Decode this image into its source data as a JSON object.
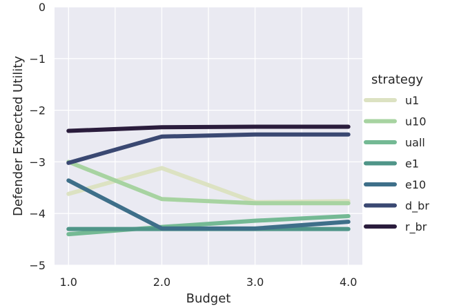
{
  "chart_data": {
    "type": "line",
    "xlabel": "Budget",
    "ylabel": "Defender Expected Utility",
    "x": [
      1.0,
      2.0,
      3.0,
      4.0
    ],
    "x_tick_labels": [
      "1.0",
      "2.0",
      "3.0",
      "4.0"
    ],
    "xlim": [
      0.85,
      4.15
    ],
    "ylim": [
      -5,
      0
    ],
    "y_ticks": [
      0,
      -1,
      -2,
      -3,
      -4,
      -5
    ],
    "y_tick_labels": [
      "0",
      "−1",
      "−2",
      "−3",
      "−4",
      "−5"
    ],
    "grid": true,
    "legend_title": "strategy",
    "legend_position": "right",
    "series": [
      {
        "name": "u1",
        "color": "#dce2c2",
        "values": [
          -3.62,
          -3.12,
          -3.78,
          -3.76
        ]
      },
      {
        "name": "u10",
        "color": "#a7d3a1",
        "values": [
          -3.0,
          -3.72,
          -3.8,
          -3.8
        ]
      },
      {
        "name": "uall",
        "color": "#74b994",
        "values": [
          -4.4,
          -4.26,
          -4.14,
          -4.05
        ]
      },
      {
        "name": "e1",
        "color": "#4f9588",
        "values": [
          -4.3,
          -4.3,
          -4.3,
          -4.3
        ]
      },
      {
        "name": "e10",
        "color": "#3e6f89",
        "values": [
          -3.36,
          -4.29,
          -4.29,
          -4.16
        ]
      },
      {
        "name": "d_br",
        "color": "#3a4872",
        "values": [
          -3.02,
          -2.51,
          -2.47,
          -2.47
        ]
      },
      {
        "name": "r_br",
        "color": "#2a1c3c",
        "values": [
          -2.4,
          -2.33,
          -2.32,
          -2.32
        ]
      }
    ]
  }
}
